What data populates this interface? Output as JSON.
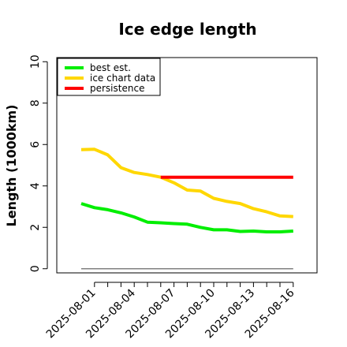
{
  "chart_data": {
    "type": "line",
    "title": "Ice edge length",
    "xlabel": "",
    "ylabel": "Length (1000km)",
    "ylim": [
      -0.2,
      10.2
    ],
    "yticks": [
      0,
      2,
      4,
      6,
      8,
      10
    ],
    "xtick_labels": [
      "2025-08-01",
      "2025-08-04",
      "2025-08-07",
      "2025-08-10",
      "2025-08-13",
      "2025-08-16"
    ],
    "x": [
      "2025-07-31",
      "2025-08-01",
      "2025-08-02",
      "2025-08-03",
      "2025-08-04",
      "2025-08-05",
      "2025-08-06",
      "2025-08-07",
      "2025-08-08",
      "2025-08-09",
      "2025-08-10",
      "2025-08-11",
      "2025-08-12",
      "2025-08-13",
      "2025-08-14",
      "2025-08-15",
      "2025-08-16"
    ],
    "grid": false,
    "legend_position": "top-left",
    "series": [
      {
        "name": "best est.",
        "color": "#00ee00",
        "x": [
          "2025-07-31",
          "2025-08-01",
          "2025-08-02",
          "2025-08-03",
          "2025-08-04",
          "2025-08-05",
          "2025-08-06",
          "2025-08-07",
          "2025-08-08",
          "2025-08-09",
          "2025-08-10",
          "2025-08-11",
          "2025-08-12",
          "2025-08-13",
          "2025-08-14",
          "2025-08-15",
          "2025-08-16"
        ],
        "values": [
          3.15,
          2.95,
          2.85,
          2.7,
          2.5,
          2.25,
          2.22,
          2.18,
          2.15,
          2.0,
          1.88,
          1.88,
          1.8,
          1.82,
          1.78,
          1.78,
          1.82
        ]
      },
      {
        "name": "ice chart data",
        "color": "#ffd700",
        "x": [
          "2025-07-31",
          "2025-08-01",
          "2025-08-02",
          "2025-08-03",
          "2025-08-04",
          "2025-08-05",
          "2025-08-06",
          "2025-08-07",
          "2025-08-08",
          "2025-08-09",
          "2025-08-10",
          "2025-08-11",
          "2025-08-12",
          "2025-08-13",
          "2025-08-14",
          "2025-08-15",
          "2025-08-16"
        ],
        "values": [
          5.75,
          5.77,
          5.5,
          4.88,
          4.65,
          4.55,
          4.42,
          4.15,
          3.8,
          3.75,
          3.4,
          3.25,
          3.15,
          2.9,
          2.75,
          2.55,
          2.52
        ]
      },
      {
        "name": "persistence",
        "color": "#ff0000",
        "x": [
          "2025-08-06",
          "2025-08-16"
        ],
        "values": [
          4.42,
          4.42
        ]
      },
      {
        "name": "",
        "color": "#808080",
        "x": [
          "2025-07-31",
          "2025-08-16"
        ],
        "values": [
          0,
          0
        ]
      }
    ]
  }
}
